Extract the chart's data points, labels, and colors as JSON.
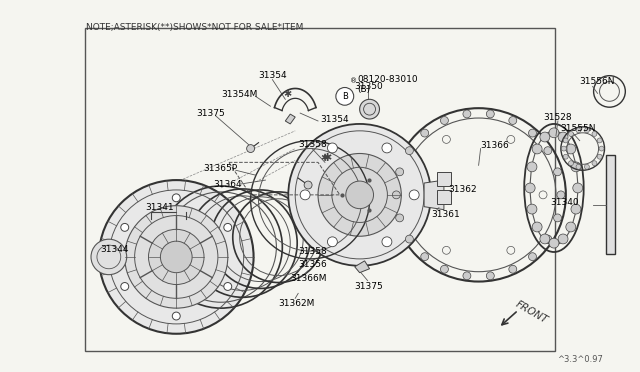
{
  "bg_color": "#f5f5f0",
  "note_text": "NOTE;ASTERISK(**)SHOWS*NOT FOR SALE*ITEM",
  "watermark": "^3.3^0.97",
  "border": [
    0.13,
    0.07,
    0.87,
    0.95
  ],
  "front_label": "FRONT"
}
